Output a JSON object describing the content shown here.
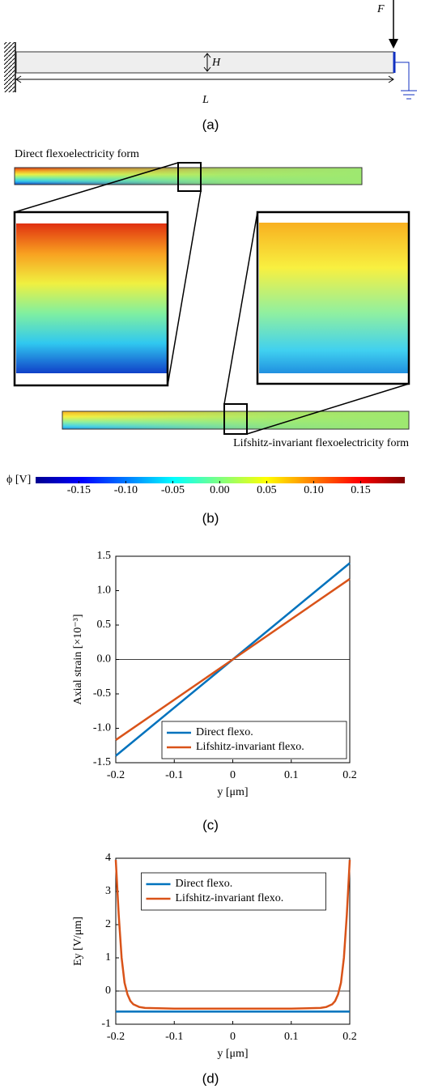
{
  "beam_diagram": {
    "force_label": "F",
    "height_label": "H",
    "length_label": "L",
    "caption": "(a)"
  },
  "field_maps": {
    "top_label": "Direct flexoelectricity form",
    "bottom_label": "Lifshitz-invariant flexoelectricity form",
    "caption": "(b)"
  },
  "colorbar": {
    "label": "ϕ [V]",
    "clim": [
      -0.196,
      0.197
    ],
    "ticks": [
      -0.15,
      {
        "value": -0.1,
        "label": "-0.10"
      },
      -0.05,
      {
        "value": 0,
        "label": "0.00"
      },
      0.05,
      {
        "value": 0.1,
        "label": "0.10"
      },
      0.15
    ]
  },
  "chart_data": [
    {
      "type": "line",
      "caption": "(c)",
      "x_label": "y [μm]",
      "y_label": "Axial strain [×10⁻³]",
      "x": [
        -0.2,
        0,
        0.2
      ],
      "xlim": [
        -0.2,
        0.2
      ],
      "xticks": [
        -0.2,
        -0.1,
        0,
        0.1,
        0.2
      ],
      "ylim": [
        -1.5,
        1.5
      ],
      "yticks": [
        -1.5,
        {
          "value": -1,
          "label": "-1.0"
        },
        -0.5,
        {
          "value": 0,
          "label": "0.0"
        },
        0.5,
        {
          "value": 1,
          "label": "1.0"
        },
        1.5
      ],
      "reference_lines": [
        0
      ],
      "legend": "lower right",
      "series": [
        {
          "name": "Direct flexo.",
          "color": "#0072bd",
          "values": [
            -1.4,
            0,
            1.4
          ]
        },
        {
          "name": "Lifshitz-invariant flexo.",
          "color": "#d95319",
          "values": [
            -1.17,
            0,
            1.17
          ]
        }
      ]
    },
    {
      "type": "line",
      "caption": "(d)",
      "x_label": "y [μm]",
      "y_label": "Ey [V/μm]",
      "x": [
        -0.2,
        -0.195,
        -0.19,
        -0.185,
        -0.18,
        -0.175,
        -0.17,
        -0.16,
        -0.15,
        -0.1,
        0,
        0.1,
        0.15,
        0.16,
        0.17,
        0.175,
        0.18,
        0.185,
        0.19,
        0.195,
        0.2
      ],
      "xlim": [
        -0.2,
        0.2
      ],
      "xticks": [
        -0.2,
        -0.1,
        0,
        0.1,
        0.2
      ],
      "ylim": [
        -1,
        4
      ],
      "yticks": [
        -1,
        0,
        1,
        2,
        3,
        4
      ],
      "reference_lines": [
        0
      ],
      "legend": "upper center",
      "series": [
        {
          "name": "Direct flexo.",
          "color": "#0072bd",
          "values": [
            -0.62,
            -0.62,
            -0.62,
            -0.62,
            -0.62,
            -0.62,
            -0.62,
            -0.62,
            -0.62,
            -0.62,
            -0.62,
            -0.62,
            -0.62,
            -0.62,
            -0.62,
            -0.62,
            -0.62,
            -0.62,
            -0.62,
            -0.62,
            -0.62
          ]
        },
        {
          "name": "Lifshitz-invariant flexo.",
          "color": "#d95319",
          "values": [
            3.95,
            2.3,
            1.0,
            0.25,
            -0.1,
            -0.3,
            -0.4,
            -0.48,
            -0.51,
            -0.53,
            -0.53,
            -0.53,
            -0.51,
            -0.48,
            -0.4,
            -0.3,
            -0.1,
            0.25,
            1.0,
            2.3,
            3.95
          ]
        }
      ]
    }
  ]
}
